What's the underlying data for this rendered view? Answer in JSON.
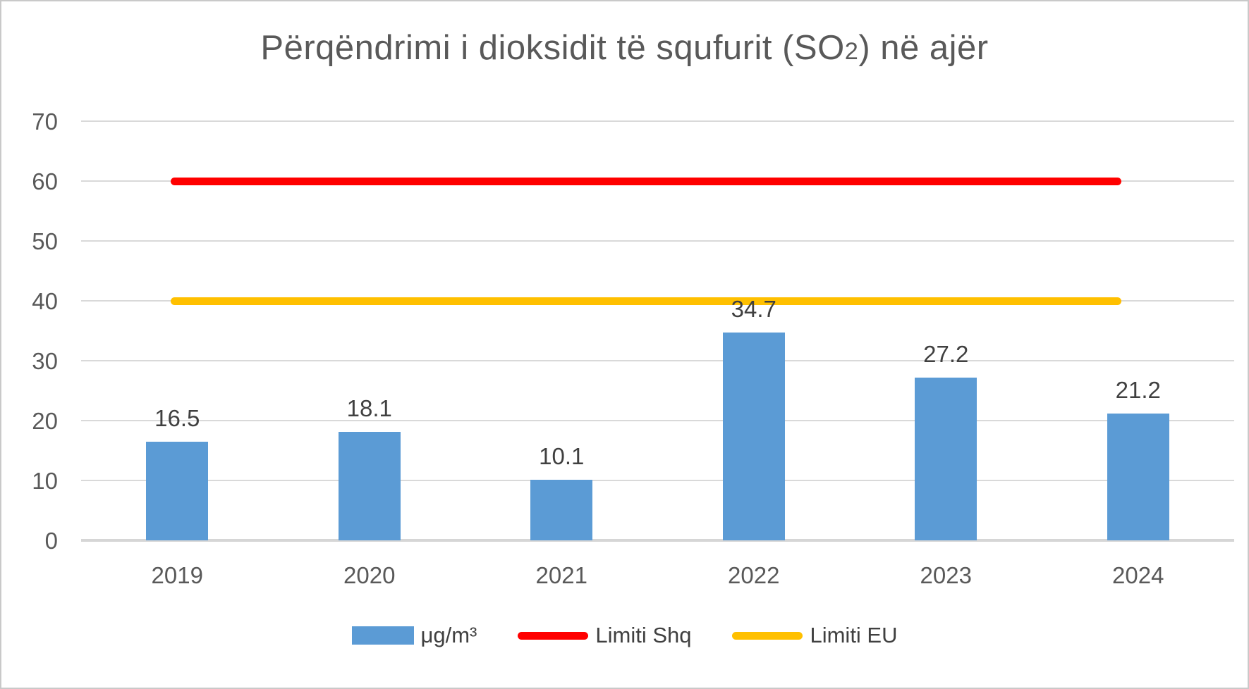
{
  "title": {
    "prefix": "Përqëndrimi i dioksidit të squfurit (SO",
    "subscript": "2",
    "suffix": ") në ajër"
  },
  "chart_data": {
    "type": "bar",
    "title": "Përqëndrimi i dioksidit të squfurit (SO2) në ajër",
    "categories": [
      "2019",
      "2020",
      "2021",
      "2022",
      "2023",
      "2024"
    ],
    "series": [
      {
        "name": "μg/m³",
        "kind": "bar",
        "color": "#5B9BD5",
        "values": [
          16.5,
          18.1,
          10.1,
          34.7,
          27.2,
          21.2
        ]
      },
      {
        "name": "Limiti Shq",
        "kind": "line",
        "color": "#FF0000",
        "value": 60
      },
      {
        "name": "Limiti EU",
        "kind": "line",
        "color": "#FFC000",
        "value": 40
      }
    ],
    "data_labels": [
      "16.5",
      "18.1",
      "10.1",
      "34.7",
      "27.2",
      "21.2"
    ],
    "xlabel": "",
    "ylabel": "",
    "ylim": [
      0,
      70
    ],
    "yticks": [
      0,
      10,
      20,
      30,
      40,
      50,
      60,
      70
    ],
    "grid": true,
    "legend_position": "bottom"
  },
  "legend": {
    "items": [
      {
        "label": "μg/m³",
        "swatch": "bar",
        "color": "#5B9BD5"
      },
      {
        "label": "Limiti Shq",
        "swatch": "line",
        "color": "#FF0000"
      },
      {
        "label": "Limiti EU",
        "swatch": "line",
        "color": "#FFC000"
      }
    ]
  },
  "colors": {
    "bar": "#5B9BD5",
    "limit_shq": "#FF0000",
    "limit_eu": "#FFC000",
    "gridline": "#D9D9D9",
    "text": "#595959",
    "label_text": "#404040",
    "background": "#FFFFFF"
  }
}
